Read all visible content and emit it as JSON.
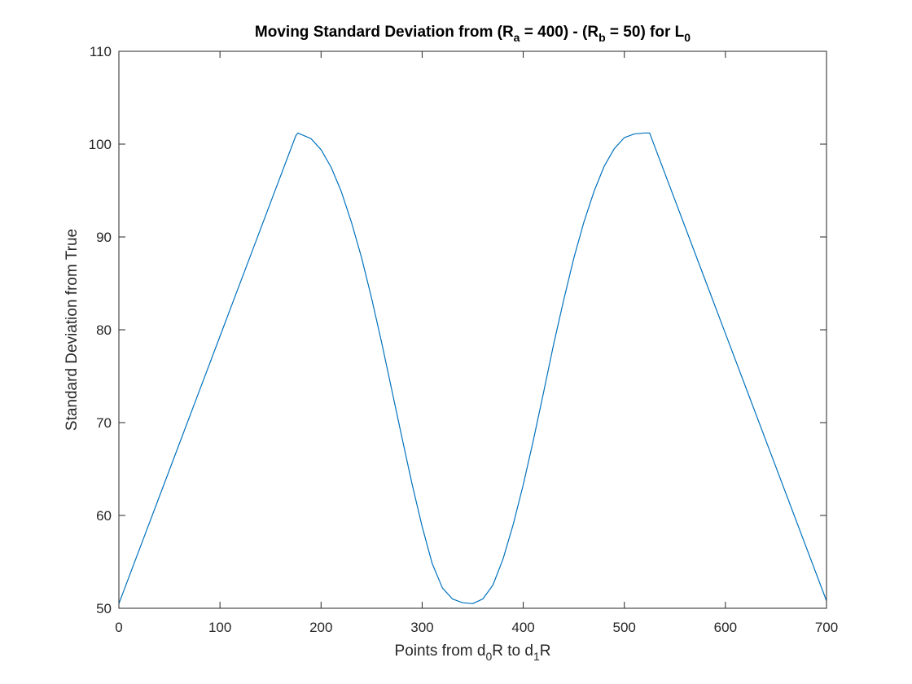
{
  "chart_data": {
    "type": "line",
    "title": {
      "parts": [
        {
          "text": "Moving Standard Deviation from (R"
        },
        {
          "text": "a",
          "sub": true
        },
        {
          "text": " = 400) - (R"
        },
        {
          "text": "b",
          "sub": true
        },
        {
          "text": " = 50) for L"
        },
        {
          "text": "0",
          "sub": true
        }
      ]
    },
    "xlabel": {
      "parts": [
        {
          "text": "Points from d"
        },
        {
          "text": "0",
          "sub": true
        },
        {
          "text": "R to d"
        },
        {
          "text": "1",
          "sub": true
        },
        {
          "text": "R"
        }
      ]
    },
    "ylabel": "Standard Deviation from True",
    "xlim": [
      0,
      700
    ],
    "ylim": [
      50,
      110
    ],
    "xticks": [
      0,
      100,
      200,
      300,
      400,
      500,
      600,
      700
    ],
    "yticks": [
      50,
      60,
      70,
      80,
      90,
      100,
      110
    ],
    "grid": false,
    "box": true,
    "series": [
      {
        "color": "#0072BD",
        "x": [
          0,
          25,
          50,
          75,
          100,
          125,
          150,
          175,
          177,
          190,
          200,
          210,
          220,
          230,
          240,
          250,
          260,
          270,
          280,
          290,
          300,
          310,
          320,
          330,
          340,
          350,
          360,
          370,
          380,
          390,
          400,
          410,
          420,
          430,
          440,
          450,
          460,
          470,
          480,
          490,
          500,
          510,
          520,
          525,
          550,
          575,
          600,
          625,
          650,
          675,
          700
        ],
        "y": [
          50.5,
          57.7,
          64.9,
          72.1,
          79.3,
          86.5,
          93.7,
          100.9,
          101.2,
          100.6,
          99.4,
          97.5,
          94.9,
          91.6,
          87.8,
          83.4,
          78.6,
          73.5,
          68.4,
          63.4,
          58.8,
          54.8,
          52.2,
          51.0,
          50.6,
          50.5,
          51.0,
          52.5,
          55.3,
          59.0,
          63.3,
          68.1,
          73.2,
          78.4,
          83.2,
          87.7,
          91.6,
          94.9,
          97.6,
          99.5,
          100.7,
          101.1,
          101.2,
          101.2,
          94.0,
          86.8,
          79.6,
          72.4,
          65.2,
          58.0,
          50.8
        ]
      }
    ]
  }
}
